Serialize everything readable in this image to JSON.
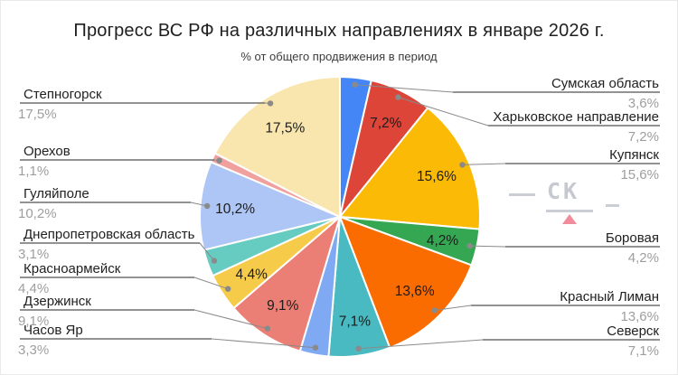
{
  "title": "Прогресс ВС РФ на различных направлениях в январе 2026 г.",
  "subtitle": "% от общего продвижения в период",
  "watermark": {
    "text": "СК"
  },
  "chart_data": {
    "type": "pie",
    "title": "Прогресс ВС РФ на различных направлениях в январе 2026 г.",
    "subtitle": "% от общего продвижения в период",
    "unit": "%",
    "total": 100,
    "start_angle_deg": 0,
    "direction": "clockwise",
    "legend_position": "none",
    "labels_style": "outside-callouts-with-inside-percents",
    "slices": [
      {
        "label": "Сумская область",
        "value": 3.6,
        "display": "3,6%",
        "color": "#4486F5"
      },
      {
        "label": "Харьковское направление",
        "value": 7.2,
        "display": "7,2%",
        "color": "#DC4538"
      },
      {
        "label": "Купянск",
        "value": 15.6,
        "display": "15,6%",
        "color": "#FBBA05"
      },
      {
        "label": "Боровая",
        "value": 4.2,
        "display": "4,2%",
        "color": "#35A753"
      },
      {
        "label": "Красный Лиман",
        "value": 13.6,
        "display": "13,6%",
        "color": "#FB6C00"
      },
      {
        "label": "Северск",
        "value": 7.1,
        "display": "7,1%",
        "color": "#49BAC1"
      },
      {
        "label": "Часов Яр",
        "value": 3.3,
        "display": "3,3%",
        "color": "#7FA9F2"
      },
      {
        "label": "Дзержинск",
        "value": 9.1,
        "display": "9,1%",
        "color": "#EB7F75"
      },
      {
        "label": "Красноармейск",
        "value": 4.4,
        "display": "4,4%",
        "color": "#F7CB4A"
      },
      {
        "label": "Днепропетровская область",
        "value": 3.1,
        "display": "3,1%",
        "color": "#66CCC1"
      },
      {
        "label": "Гуляйполе",
        "value": 10.2,
        "display": "10,2%",
        "color": "#AEC6F5"
      },
      {
        "label": "Орехов",
        "value": 1.1,
        "display": "1,1%",
        "color": "#F1A19D"
      },
      {
        "label": "Степногорск",
        "value": 17.5,
        "display": "17,5%",
        "color": "#F9E6AE"
      }
    ]
  }
}
